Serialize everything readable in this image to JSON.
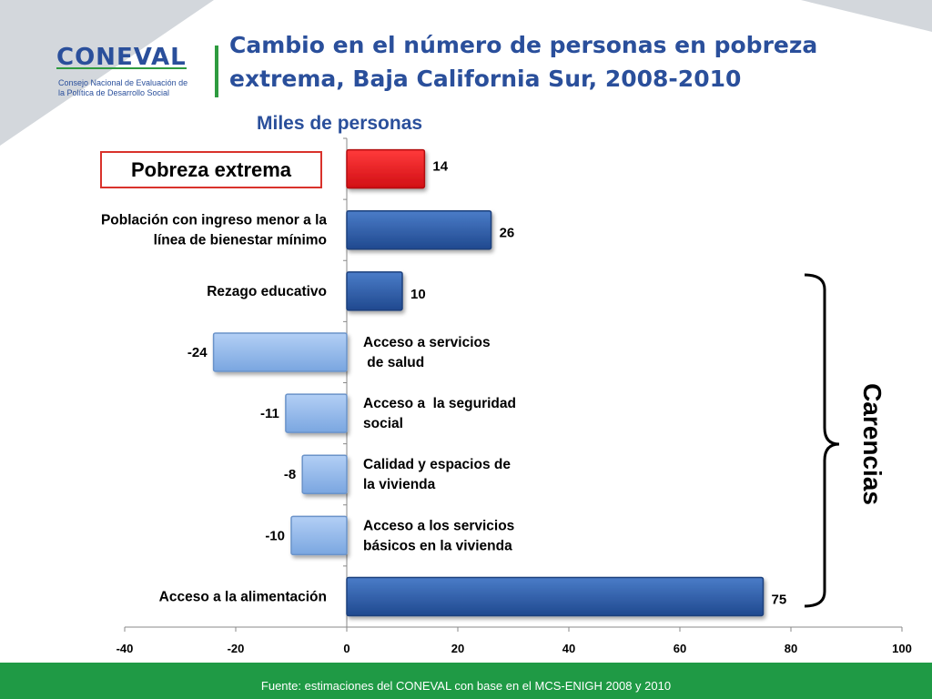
{
  "title": "Cambio en el número de personas en pobreza\nextrema, Baja California Sur, 2008-2010",
  "logo": {
    "wordmark": "CONEVAL",
    "subtitle": "Consejo Nacional de Evaluación de la Política de Desarrollo Social"
  },
  "annotation_group": "Carencias",
  "footer": "Fuente: estimaciones del CONEVAL con base en el MCS-ENIGH 2008 y 2010",
  "colors": {
    "highlight_bar": "#e8141b",
    "positive_bar": "#2b5ba8",
    "negative_bar": "#8db4e8",
    "brand_blue": "#2a4f9b",
    "brand_green": "#1f9a45",
    "box_border": "#d9322b"
  },
  "chart_data": {
    "type": "bar",
    "orientation": "horizontal",
    "subtitle": "Miles de personas",
    "categories": [
      "Pobreza extrema",
      "Población con ingreso menor a la\nlínea de bienestar mínimo",
      "Rezago educativo",
      "Acceso a servicios\n de salud",
      "Acceso a  la seguridad\nsocial",
      "Calidad y espacios de\nla vivienda",
      "Acceso a los servicios\nbásicos en la vivienda",
      "Acceso a la alimentación"
    ],
    "values": [
      14,
      26,
      10,
      -24,
      -11,
      -8,
      -10,
      75
    ],
    "data_labels": [
      "14",
      "26",
      "10",
      "-24",
      "-11",
      "-8",
      "-10",
      "75"
    ],
    "xlim": [
      -40,
      100
    ],
    "xticks": [
      "-40",
      "-20",
      "0",
      "20",
      "40",
      "60",
      "80",
      "100"
    ],
    "grid": false,
    "legend": "none"
  }
}
